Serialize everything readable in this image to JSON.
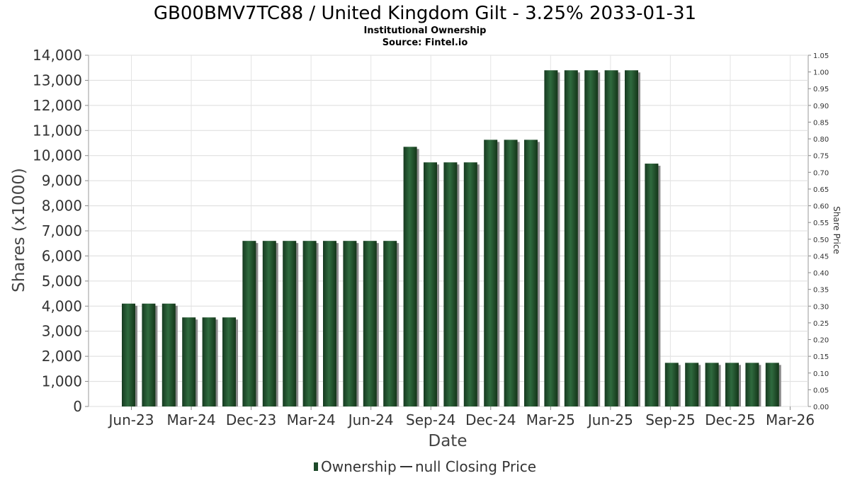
{
  "chart_data": {
    "type": "bar",
    "title": "GB00BMV7TC88 / United Kingdom Gilt - 3.25% 2033-01-31",
    "subtitle_lines": [
      "Institutional Ownership",
      "Source: Fintel.io"
    ],
    "xlabel": "Date",
    "ylabel": "Shares (x1000)",
    "y2label": "Share Price",
    "ylim": [
      0,
      14000
    ],
    "y2lim": [
      0,
      1.05
    ],
    "y_ticks": [
      "0",
      "1,000",
      "2,000",
      "3,000",
      "4,000",
      "5,000",
      "6,000",
      "7,000",
      "8,000",
      "9,000",
      "10,000",
      "11,000",
      "12,000",
      "13,000",
      "14,000"
    ],
    "y2_ticks": [
      "0.00",
      "0.05",
      "0.10",
      "0.15",
      "0.20",
      "0.25",
      "0.30",
      "0.35",
      "0.40",
      "0.45",
      "0.50",
      "0.55",
      "0.60",
      "0.65",
      "0.70",
      "0.75",
      "0.80",
      "0.85",
      "0.90",
      "0.95",
      "1.00",
      "1.05"
    ],
    "x_tick_labels": [
      "Jun-23",
      "Mar-24",
      "Dec-23",
      "Mar-24",
      "Jun-24",
      "Sep-24",
      "Dec-24",
      "Mar-25",
      "Jun-25",
      "Sep-25",
      "Dec-25",
      "Mar-26"
    ],
    "series": [
      {
        "name": "Ownership",
        "color": "#1e4a2a",
        "values": [
          4100,
          4100,
          4100,
          3550,
          3550,
          3550,
          6600,
          6600,
          6600,
          6600,
          6600,
          6600,
          6600,
          6600,
          10350,
          9730,
          9730,
          9730,
          10630,
          10630,
          10630,
          13400,
          13400,
          13400,
          13400,
          13400,
          9680,
          1740,
          1740,
          1740,
          1740,
          1740,
          1740
        ]
      }
    ],
    "legend": {
      "position": "bottom",
      "items": [
        "Ownership",
        "null Closing Price"
      ]
    },
    "grid": true
  }
}
